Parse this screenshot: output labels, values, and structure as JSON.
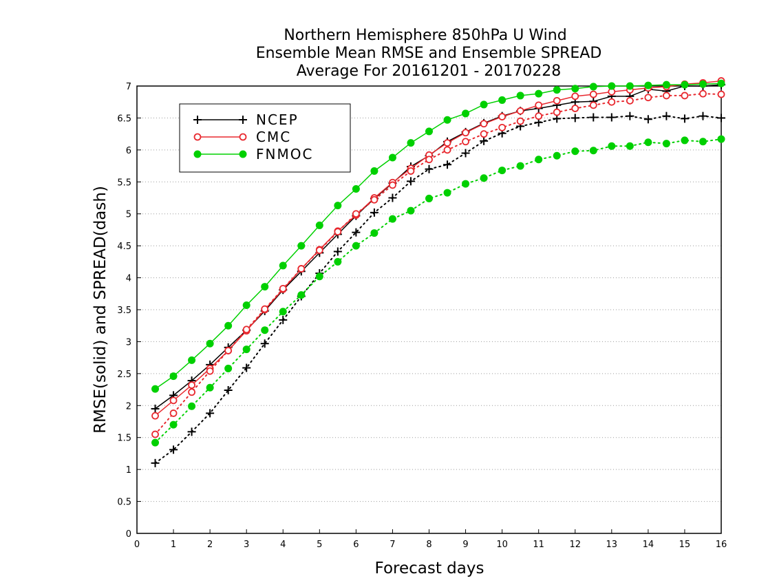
{
  "chart_data": {
    "type": "line",
    "title": [
      "Northern Hemisphere 850hPa U Wind",
      "Ensemble Mean RMSE and Ensemble SPREAD",
      "Average For 20161201 - 20170228"
    ],
    "xlabel": "Forecast days",
    "ylabel": "RMSE(solid) and SPREAD(dash)",
    "xlim": [
      0,
      16
    ],
    "ylim": [
      0,
      7
    ],
    "x_ticks": [
      0,
      1,
      2,
      3,
      4,
      5,
      6,
      7,
      8,
      9,
      10,
      11,
      12,
      13,
      14,
      15,
      16
    ],
    "y_ticks": [
      0,
      0.5,
      1,
      1.5,
      2,
      2.5,
      3,
      3.5,
      4,
      4.5,
      5,
      5.5,
      6,
      6.5,
      7
    ],
    "grid": "horizontal dotted",
    "legend_position": "upper-left",
    "x": [
      0.5,
      1,
      1.5,
      2,
      2.5,
      3,
      3.5,
      4,
      4.5,
      5,
      5.5,
      6,
      6.5,
      7,
      7.5,
      8,
      8.5,
      9,
      9.5,
      10,
      10.5,
      11,
      11.5,
      12,
      12.5,
      13,
      13.5,
      14,
      14.5,
      15,
      15.5,
      16
    ],
    "series": [
      {
        "name": "NCEP",
        "color": "#000000",
        "marker": "plus",
        "rmse": [
          1.95,
          2.16,
          2.39,
          2.64,
          2.91,
          3.18,
          3.48,
          3.81,
          4.1,
          4.39,
          4.68,
          4.97,
          5.24,
          5.48,
          5.74,
          5.91,
          6.13,
          6.28,
          6.42,
          6.53,
          6.61,
          6.65,
          6.7,
          6.75,
          6.76,
          6.84,
          6.84,
          6.95,
          6.92,
          7.0,
          7.0,
          7.02
        ],
        "spread": [
          1.1,
          1.31,
          1.59,
          1.88,
          2.24,
          2.59,
          2.97,
          3.34,
          3.71,
          4.07,
          4.41,
          4.71,
          5.02,
          5.25,
          5.51,
          5.7,
          5.77,
          5.95,
          6.14,
          6.26,
          6.37,
          6.43,
          6.49,
          6.5,
          6.51,
          6.51,
          6.53,
          6.48,
          6.53,
          6.49,
          6.53,
          6.5
        ]
      },
      {
        "name": "CMC",
        "color": "#e8282e",
        "marker": "open-circle",
        "rmse": [
          1.84,
          2.08,
          2.32,
          2.58,
          2.86,
          3.17,
          3.5,
          3.82,
          4.14,
          4.44,
          4.73,
          4.98,
          5.25,
          5.49,
          5.71,
          5.92,
          6.11,
          6.27,
          6.41,
          6.52,
          6.61,
          6.7,
          6.77,
          6.84,
          6.87,
          6.91,
          6.94,
          6.97,
          6.99,
          7.03,
          7.05,
          7.08
        ],
        "spread": [
          1.55,
          1.88,
          2.21,
          2.54,
          2.86,
          3.19,
          3.51,
          3.83,
          4.14,
          4.43,
          4.72,
          5.0,
          5.22,
          5.45,
          5.67,
          5.85,
          6.0,
          6.13,
          6.25,
          6.35,
          6.45,
          6.53,
          6.59,
          6.65,
          6.7,
          6.75,
          6.77,
          6.82,
          6.85,
          6.85,
          6.88,
          6.87
        ]
      },
      {
        "name": "FNMOC",
        "color": "#00d000",
        "marker": "filled-circle",
        "rmse": [
          2.26,
          2.46,
          2.71,
          2.97,
          3.25,
          3.57,
          3.86,
          4.19,
          4.5,
          4.82,
          5.13,
          5.39,
          5.67,
          5.88,
          6.11,
          6.29,
          6.47,
          6.57,
          6.71,
          6.78,
          6.85,
          6.88,
          6.94,
          6.96,
          6.99,
          7.0,
          7.0,
          7.01,
          7.02,
          7.02,
          7.03,
          7.04
        ],
        "spread": [
          1.42,
          1.7,
          1.99,
          2.28,
          2.58,
          2.88,
          3.18,
          3.47,
          3.73,
          4.02,
          4.25,
          4.5,
          4.7,
          4.92,
          5.05,
          5.24,
          5.33,
          5.47,
          5.56,
          5.68,
          5.75,
          5.85,
          5.91,
          5.98,
          5.99,
          6.06,
          6.06,
          6.12,
          6.1,
          6.15,
          6.13,
          6.17
        ]
      }
    ]
  }
}
